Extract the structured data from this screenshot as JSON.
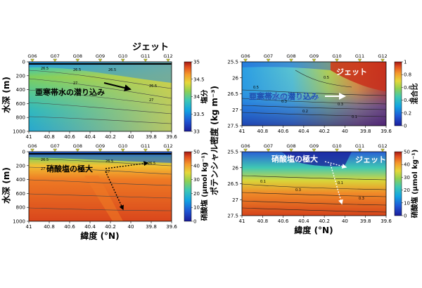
{
  "figure": {
    "top_title": "ジェット",
    "left_ylabel": "水深 (m)",
    "right_ylabel": "ポテンシャル密度 (kg m⁻³)",
    "left_xlabel": "緯度 (°N)",
    "right_xlabel": "緯度 (°N)"
  },
  "colors": {
    "frame": "#000000",
    "station_marker": "#c8c820",
    "annotation_dark": "#000000",
    "annotation_light": "#ffffff"
  },
  "chart_data": [
    {
      "id": "salinity-depth",
      "type": "heatmap",
      "x_range": [
        41,
        39.6
      ],
      "y_range": [
        0,
        1000
      ],
      "x_ticks": [
        "41",
        "40.8",
        "40.6",
        "40.4",
        "40.2",
        "40",
        "39.8",
        "39.6"
      ],
      "y_ticks": [
        "0",
        "200",
        "400",
        "600",
        "800",
        "1000"
      ],
      "stations": [
        "G06",
        "G07",
        "G08",
        "G09",
        "G10",
        "G11",
        "G12"
      ],
      "colorbar": {
        "label": "塩分",
        "ticks": [
          "35",
          "34.5",
          "34",
          "33.5",
          "33"
        ],
        "range": [
          33,
          35
        ]
      },
      "contour_labels": [
        "26.5",
        "26.5",
        "26.5",
        "27",
        "26.5",
        "27"
      ],
      "annotation": "亜寒帯水の潜り込み"
    },
    {
      "id": "nitrate-depth",
      "type": "heatmap",
      "x_range": [
        41,
        39.6
      ],
      "y_range": [
        0,
        1000
      ],
      "x_ticks": [
        "41",
        "40.8",
        "40.6",
        "40.4",
        "40.2",
        "40",
        "39.8",
        "39.6"
      ],
      "y_ticks": [
        "0",
        "200",
        "400",
        "600",
        "800",
        "1000"
      ],
      "stations": [
        "G06",
        "G07",
        "G08",
        "G09",
        "G10",
        "G11",
        "G12"
      ],
      "colorbar": {
        "label": "硝酸塩 (μmol kg⁻¹)",
        "ticks": [
          "50",
          "40",
          "30",
          "20",
          "10",
          "0"
        ],
        "range": [
          0,
          50
        ]
      },
      "contour_labels": [
        "26.5",
        "27",
        "26.5",
        "27",
        "26.5"
      ],
      "annotation": "硝酸塩の極大"
    },
    {
      "id": "mixing-density",
      "type": "heatmap",
      "x_range": [
        41,
        39.6
      ],
      "y_range": [
        25.5,
        27.5
      ],
      "x_ticks": [
        "41",
        "40.8",
        "40.6",
        "40.4",
        "40.2",
        "40",
        "39.8",
        "39.6"
      ],
      "y_ticks": [
        "25.5",
        "26",
        "26.5",
        "27",
        "27.5"
      ],
      "stations": [
        "G06",
        "G07",
        "G08",
        "G09",
        "G10",
        "G11",
        "G12"
      ],
      "colorbar": {
        "label": "混合比",
        "ticks": [
          "1",
          "0.8",
          "0.6",
          "0.4",
          "0.2",
          "0"
        ],
        "range": [
          0,
          1
        ]
      },
      "contour_labels": [
        "0.5",
        "0.3",
        "0.5",
        "0.3",
        "0.2",
        "0.1"
      ],
      "annotation": "亜寒帯水の潜り込み",
      "annotation_2": "ジェット"
    },
    {
      "id": "nitrate-density",
      "type": "heatmap",
      "x_range": [
        41,
        39.6
      ],
      "y_range": [
        25.5,
        27.5
      ],
      "x_ticks": [
        "41",
        "40.8",
        "40.6",
        "40.4",
        "40.2",
        "40",
        "39.8",
        "39.6"
      ],
      "y_ticks": [
        "25.5",
        "26",
        "26.5",
        "27",
        "27.5"
      ],
      "stations": [
        "G06",
        "G07",
        "G08",
        "G09",
        "G10",
        "G11",
        "G12"
      ],
      "colorbar": {
        "label": "硝酸塩 (μmol kg⁻¹)",
        "ticks": [
          "50",
          "40",
          "30",
          "20",
          "10",
          "0"
        ],
        "range": [
          0,
          50
        ]
      },
      "contour_labels": [
        "0.1",
        "0.3",
        "0.1",
        "0.3"
      ],
      "annotation": "硝酸塩の極大",
      "annotation_2": "ジェット"
    }
  ]
}
